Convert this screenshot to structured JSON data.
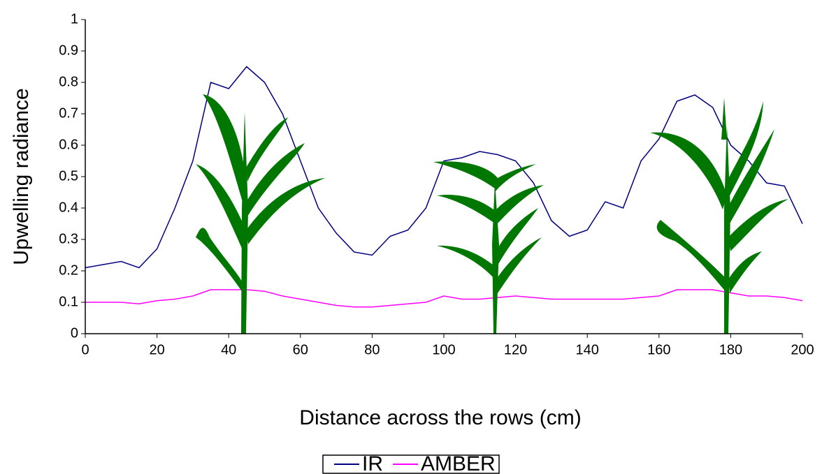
{
  "chart_data": {
    "type": "line",
    "x_label": "Distance across the rows (cm)",
    "y_label": "Upwelling radiance",
    "x": [
      0,
      5,
      10,
      15,
      20,
      25,
      30,
      35,
      40,
      45,
      50,
      55,
      60,
      65,
      70,
      75,
      80,
      85,
      90,
      95,
      100,
      105,
      110,
      115,
      120,
      125,
      130,
      135,
      140,
      145,
      150,
      155,
      160,
      165,
      170,
      175,
      180,
      185,
      190,
      195,
      200
    ],
    "series": [
      {
        "name": "IR",
        "color": "#000080",
        "values": [
          0.21,
          0.22,
          0.23,
          0.21,
          0.27,
          0.4,
          0.55,
          0.8,
          0.78,
          0.85,
          0.8,
          0.7,
          0.55,
          0.4,
          0.32,
          0.26,
          0.25,
          0.31,
          0.33,
          0.4,
          0.55,
          0.56,
          0.58,
          0.57,
          0.55,
          0.48,
          0.36,
          0.31,
          0.33,
          0.42,
          0.4,
          0.55,
          0.62,
          0.74,
          0.76,
          0.72,
          0.6,
          0.55,
          0.48,
          0.47,
          0.35
        ]
      },
      {
        "name": "AMBER",
        "color": "#ff00ff",
        "values": [
          0.1,
          0.1,
          0.1,
          0.095,
          0.105,
          0.11,
          0.12,
          0.14,
          0.14,
          0.14,
          0.135,
          0.12,
          0.11,
          0.1,
          0.09,
          0.085,
          0.085,
          0.09,
          0.095,
          0.1,
          0.12,
          0.11,
          0.11,
          0.115,
          0.12,
          0.115,
          0.11,
          0.11,
          0.11,
          0.11,
          0.11,
          0.115,
          0.12,
          0.14,
          0.14,
          0.14,
          0.13,
          0.12,
          0.12,
          0.115,
          0.105
        ]
      }
    ],
    "xlim": [
      0,
      200
    ],
    "xticks": [
      0,
      20,
      40,
      60,
      80,
      100,
      120,
      140,
      160,
      180,
      200
    ],
    "ylim": [
      0,
      1
    ],
    "yticks": [
      0,
      0.1,
      0.2,
      0.3,
      0.4,
      0.5,
      0.6,
      0.7,
      0.8,
      0.9,
      1
    ],
    "grid": false,
    "legend": "bottom"
  }
}
